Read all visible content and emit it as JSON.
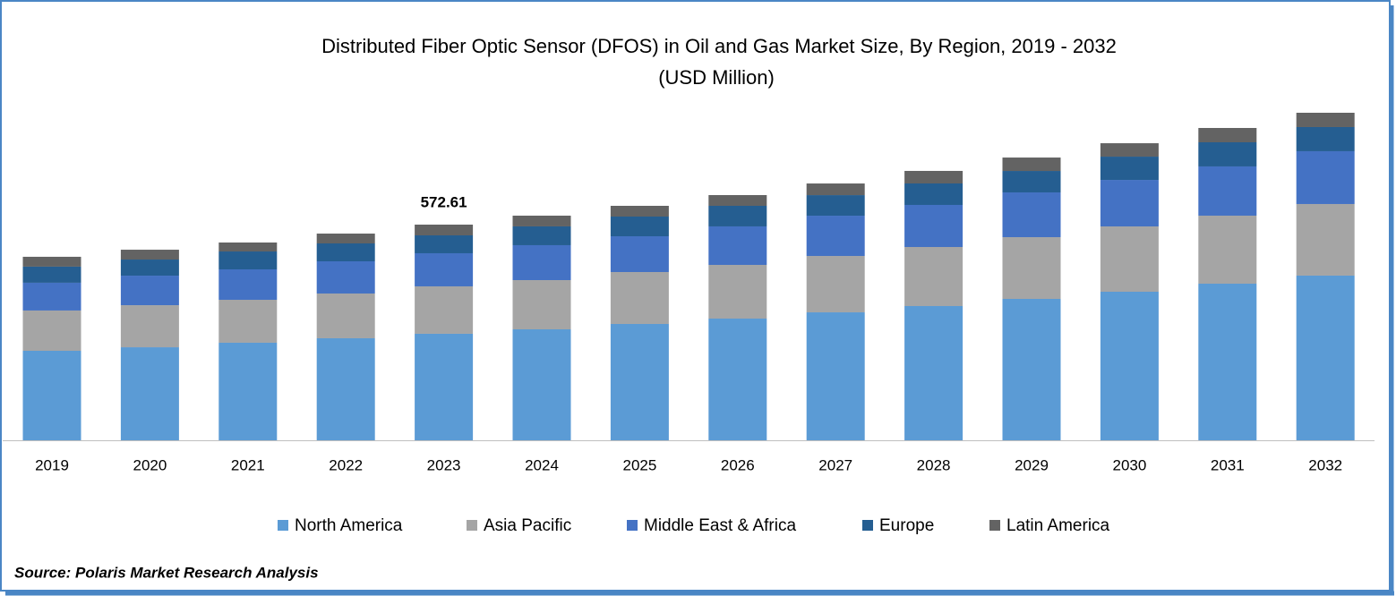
{
  "chart_data": {
    "type": "stacked_bar",
    "title": "Distributed Fiber Optic Sensor (DFOS) in Oil and Gas Market Size, By Region, 2019 - 2032",
    "subtitle": "(USD Million)",
    "categories": [
      "2019",
      "2020",
      "2021",
      "2022",
      "2023",
      "2024",
      "2025",
      "2026",
      "2027",
      "2028",
      "2029",
      "2030",
      "2031",
      "2032"
    ],
    "series": [
      {
        "name": "North America",
        "color": "#5b9bd5",
        "values": [
          237.6,
          247,
          259,
          270.9,
          282.8,
          294.6,
          308.9,
          323.1,
          339.7,
          356.4,
          375.4,
          394.4,
          415.8,
          437.2
        ]
      },
      {
        "name": "Asia Pacific",
        "color": "#a5a5a5",
        "values": [
          107,
          111.7,
          114,
          118.8,
          125.9,
          130.7,
          137.8,
          142.6,
          149.7,
          156.8,
          163.9,
          173.4,
          180.6,
          190.1
        ]
      },
      {
        "name": "Middle East & Africa",
        "color": "#4472c4",
        "values": [
          73.7,
          78.4,
          80.8,
          85.5,
          87.9,
          92.7,
          95,
          102.2,
          106.9,
          111.7,
          118.8,
          123.5,
          130.7,
          140.2
        ]
      },
      {
        "name": "Europe",
        "color": "#255e91",
        "values": [
          42.8,
          42.8,
          47.5,
          47.5,
          47.5,
          49.9,
          52.3,
          54.6,
          54.6,
          57,
          57,
          61.8,
          64.1,
          64.1
        ]
      },
      {
        "name": "Latin America",
        "color": "#636363",
        "values": [
          26.1,
          26.1,
          23.8,
          26.1,
          28.5,
          28.5,
          28.5,
          28.5,
          30.9,
          33.3,
          35.6,
          35.6,
          38,
          38
        ]
      }
    ],
    "annotations": [
      {
        "x": "2023",
        "value": 572.61
      }
    ],
    "legend": "bottom",
    "source": "Source: Polaris Market Research Analysis"
  }
}
